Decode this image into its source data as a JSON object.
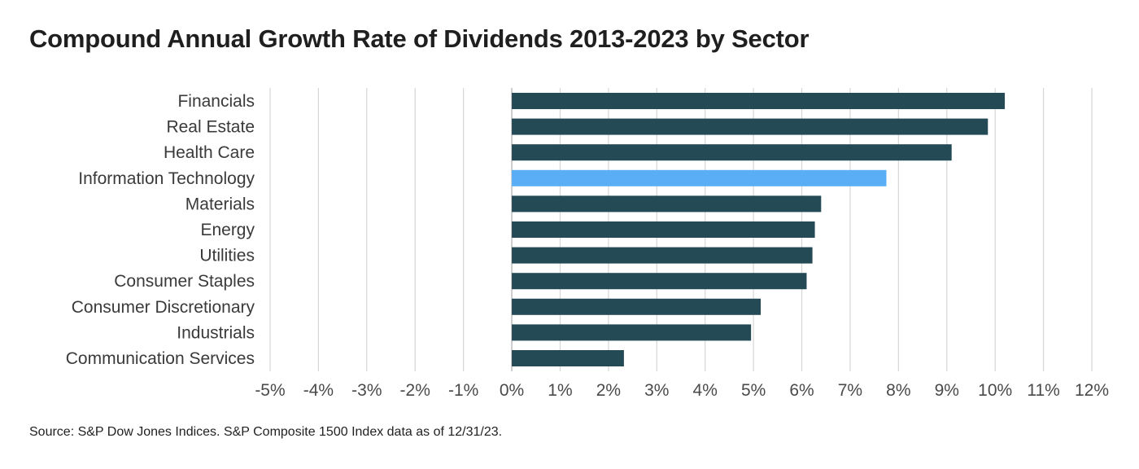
{
  "colors": {
    "bar_default": "#244a55",
    "bar_highlight": "#5aaef5",
    "gridline": "#d6d6d6",
    "zero_line": "#bdbdbd"
  },
  "footer": {
    "source": "Source: S&P Dow Jones Indices. S&P Composite 1500 Index data as of 12/31/23."
  },
  "chart_data": {
    "type": "bar",
    "orientation": "horizontal",
    "title": "Compound Annual Growth Rate of Dividends 2013-2023 by Sector",
    "xlabel": "",
    "ylabel": "",
    "grid": true,
    "xlim": [
      -5,
      12
    ],
    "x_ticks": [
      -5,
      -4,
      -3,
      -2,
      -1,
      0,
      1,
      2,
      3,
      4,
      5,
      6,
      7,
      8,
      9,
      10,
      11,
      12
    ],
    "tick_suffix": "%",
    "categories": [
      "Financials",
      "Real Estate",
      "Health Care",
      "Information Technology",
      "Materials",
      "Energy",
      "Utilities",
      "Consumer Staples",
      "Consumer Discretionary",
      "Industrials",
      "Communication Services"
    ],
    "values": [
      10.2,
      9.85,
      9.1,
      7.75,
      6.4,
      6.27,
      6.22,
      6.1,
      5.15,
      4.95,
      2.32
    ],
    "highlight": "Information Technology"
  }
}
